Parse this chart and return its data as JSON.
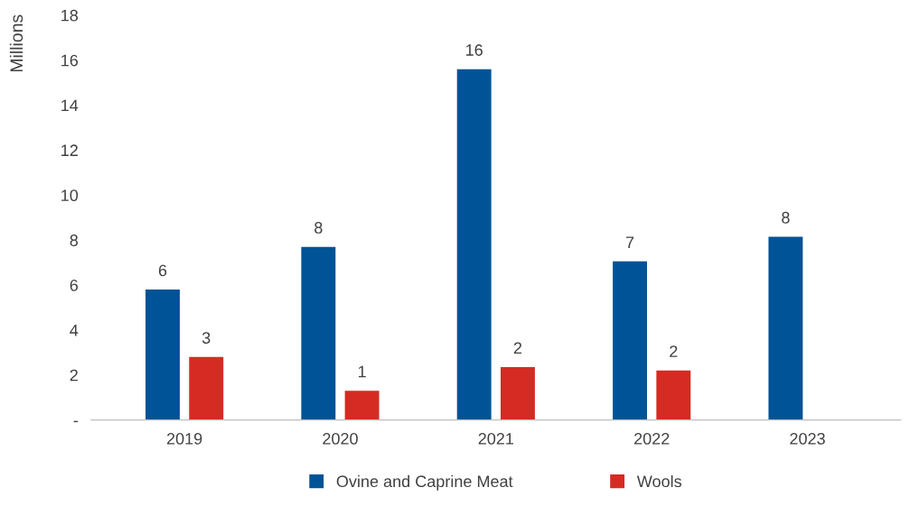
{
  "chart_data": {
    "type": "bar",
    "ylabel": "Millions",
    "categories": [
      "2019",
      "2020",
      "2021",
      "2022",
      "2023"
    ],
    "series": [
      {
        "name": "Ovine and Caprine Meat",
        "color": "#005396",
        "values": [
          5.8,
          7.7,
          15.6,
          7.05,
          8.15
        ],
        "value_labels": [
          "6",
          "8",
          "16",
          "7",
          "8"
        ]
      },
      {
        "name": "Wools",
        "color": "#d52b23",
        "values": [
          2.8,
          1.3,
          2.35,
          2.2,
          null
        ],
        "value_labels": [
          "3",
          "1",
          "2",
          "2",
          null
        ]
      }
    ],
    "ylim": [
      0,
      18
    ],
    "yticks": [
      {
        "value": 0,
        "label": "-"
      },
      2,
      4,
      6,
      8,
      10,
      12,
      14,
      16,
      18
    ],
    "grid": false,
    "legend": "bottom"
  }
}
